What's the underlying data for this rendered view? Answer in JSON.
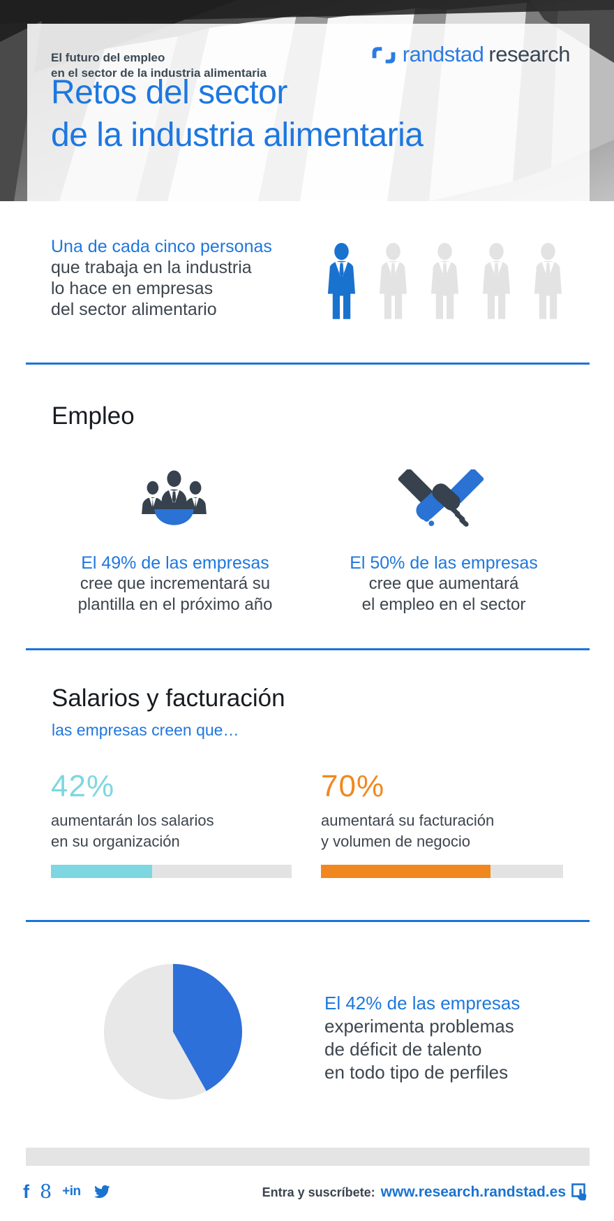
{
  "header": {
    "eyebrow_line1": "El futuro del empleo",
    "eyebrow_line2": "en el sector de la industria alimentaria",
    "logo_brand": "randstad",
    "logo_suffix": "research",
    "title_line1": "Retos del sector",
    "title_line2": "de la industria alimentaria",
    "accent_color": "#1d77e0"
  },
  "intro": {
    "highlight_line": "Una de cada cinco personas",
    "line2": "que trabaja en la industria",
    "line3": "lo hace en empresas",
    "line4": "del sector alimentario",
    "pictogram": {
      "total": 5,
      "highlighted": 1,
      "highlight_color": "#1a72cf",
      "muted_color": "#e3e3e3"
    }
  },
  "empleo": {
    "heading": "Empleo",
    "stats": [
      {
        "highlight": "El 49% de las empresas",
        "line2": "cree que incrementará su",
        "line3": "plantilla en el próximo año"
      },
      {
        "highlight": "El 50% de las empresas",
        "line2": "cree que aumentará",
        "line3": "el empleo en el sector"
      }
    ]
  },
  "salarios": {
    "heading": "Salarios y facturación",
    "subheading": "las empresas creen que…",
    "bars": [
      {
        "value_label": "42%",
        "percent": 42,
        "color": "#7ed7e0",
        "track_color": "#e3e3e3",
        "line1": "aumentarán los salarios",
        "line2": "en su organización"
      },
      {
        "value_label": "70%",
        "percent": 70,
        "color": "#f0881f",
        "track_color": "#e3e3e3",
        "line1": "aumentará su facturación",
        "line2": "y volumen de negocio"
      }
    ]
  },
  "talento": {
    "highlight": "El 42% de las empresas",
    "line2": "experimenta problemas",
    "line3": "de déficit de talento",
    "line4": "en todo tipo de perfiles",
    "pie": {
      "percent": 42,
      "color": "#2e70d9",
      "track_color": "#e8e8e8"
    }
  },
  "footer": {
    "social": [
      {
        "name": "facebook",
        "glyph": "f"
      },
      {
        "name": "google-plus",
        "glyph": "8"
      },
      {
        "name": "linkedin",
        "glyph": "+in"
      },
      {
        "name": "twitter"
      }
    ],
    "cta_label": "Entra y suscríbete:",
    "cta_url": "www.research.randstad.es"
  },
  "chart_data": [
    {
      "type": "pictogram",
      "title": "Una de cada cinco personas que trabaja en la industria lo hace en empresas del sector alimentario",
      "total_units": 5,
      "highlighted_units": 1,
      "fraction": 0.2
    },
    {
      "type": "stat",
      "section": "Empleo",
      "label": "cree que incrementará su plantilla en el próximo año",
      "value": 49,
      "unit": "%"
    },
    {
      "type": "stat",
      "section": "Empleo",
      "label": "cree que aumentará el empleo en el sector",
      "value": 50,
      "unit": "%"
    },
    {
      "type": "bar",
      "section": "Salarios y facturación",
      "categories": [
        "aumentarán los salarios en su organización",
        "aumentará su facturación y volumen de negocio"
      ],
      "values": [
        42,
        70
      ],
      "unit": "%",
      "colors": [
        "#7ed7e0",
        "#f0881f"
      ],
      "xlim": [
        0,
        100
      ]
    },
    {
      "type": "pie",
      "section": "Déficit de talento",
      "labels": [
        "experimenta problemas de déficit de talento",
        "resto"
      ],
      "values": [
        42,
        58
      ],
      "colors": [
        "#2e70d9",
        "#e8e8e8"
      ]
    }
  ]
}
